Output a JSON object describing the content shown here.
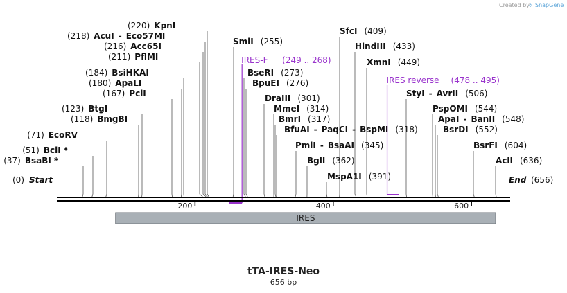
{
  "credit": {
    "prefix": "Created by",
    "brand": "SnapGene",
    "brand_color": "#5ea6d9",
    "prefix_color": "#a0a0a0"
  },
  "title": "tTA-IRES-Neo",
  "subtitle": "656 bp",
  "sequence": {
    "length": 656,
    "start_label": "Start",
    "end_label": "End",
    "start_pos": "(0)",
    "end_pos": "(656)"
  },
  "ticks": [
    {
      "label": "200",
      "value": 200
    },
    {
      "label": "400",
      "value": 400
    },
    {
      "label": "600",
      "value": 600
    }
  ],
  "features": [
    {
      "label": "IRES",
      "start": 85,
      "end": 635,
      "color": "#a9b0b6"
    }
  ],
  "primers": [
    {
      "name": "IRES-F",
      "range": "(249 .. 268)",
      "start": 249,
      "end": 268,
      "color": "#9933cc"
    },
    {
      "name": "IRES reverse",
      "range": "(478 .. 495)",
      "start": 478,
      "end": 495,
      "color": "#9933cc"
    }
  ],
  "labels": [
    {
      "text": [
        "(37)",
        "BsaBI *"
      ],
      "site": 37
    },
    {
      "text": [
        "(51)",
        "BclI *"
      ],
      "site": 51
    },
    {
      "text": [
        "(71)",
        "EcoRV"
      ],
      "site": 71
    },
    {
      "text": [
        "(118)",
        "BmgBI"
      ],
      "site": 118
    },
    {
      "text": [
        "(123)",
        "BtgI"
      ],
      "site": 123
    },
    {
      "text": [
        "(167)",
        "PciI"
      ],
      "site": 167
    },
    {
      "text": [
        "(180)",
        "ApaLI"
      ],
      "site": 180
    },
    {
      "text": [
        "(184)",
        "BsiHKAI"
      ],
      "site": 184
    },
    {
      "text": [
        "(211)",
        "PflMI"
      ],
      "site": 211
    },
    {
      "text": [
        "(216)",
        "Acc65I"
      ],
      "site": 216
    },
    {
      "text": [
        "(218)",
        "AcuI",
        "-",
        "Eco57MI"
      ],
      "site": 218
    },
    {
      "text": [
        "(220)",
        "KpnI"
      ],
      "site": 220
    },
    {
      "text": [
        "SmlI",
        "(255)"
      ],
      "site": 255
    },
    {
      "text": [
        "BseRI",
        "(273)"
      ],
      "site": 273
    },
    {
      "text": [
        "BpuEI",
        "(276)"
      ],
      "site": 276
    },
    {
      "text": [
        "DraIII",
        "(301)"
      ],
      "site": 301
    },
    {
      "text": [
        "MmeI",
        "(314)"
      ],
      "site": 314
    },
    {
      "text": [
        "BmrI",
        "(317)"
      ],
      "site": 317
    },
    {
      "text": [
        "BfuAI",
        "-",
        "PaqCI",
        "-",
        "BspMI",
        "(318)"
      ],
      "site": 318
    },
    {
      "text": [
        "PmlI",
        "-",
        "BsaAI",
        "(345)"
      ],
      "site": 345
    },
    {
      "text": [
        "BglI",
        "(362)"
      ],
      "site": 362
    },
    {
      "text": [
        "MspA1I",
        "(391)"
      ],
      "site": 391
    },
    {
      "text": [
        "SfcI",
        "(409)"
      ],
      "site": 409
    },
    {
      "text": [
        "HindIII",
        "(433)"
      ],
      "site": 433
    },
    {
      "text": [
        "XmnI",
        "(449)"
      ],
      "site": 449
    },
    {
      "text": [
        "StyI",
        "-",
        "AvrII",
        "(506)"
      ],
      "site": 506
    },
    {
      "text": [
        "PspOMI",
        "(544)"
      ],
      "site": 544
    },
    {
      "text": [
        "ApaI",
        "-",
        "BanII",
        "(548)"
      ],
      "site": 548
    },
    {
      "text": [
        "BsrDI",
        "(552)"
      ],
      "site": 552
    },
    {
      "text": [
        "BsrFI",
        "(604)"
      ],
      "site": 604
    },
    {
      "text": [
        "AclI",
        "(636)"
      ],
      "site": 636
    }
  ]
}
